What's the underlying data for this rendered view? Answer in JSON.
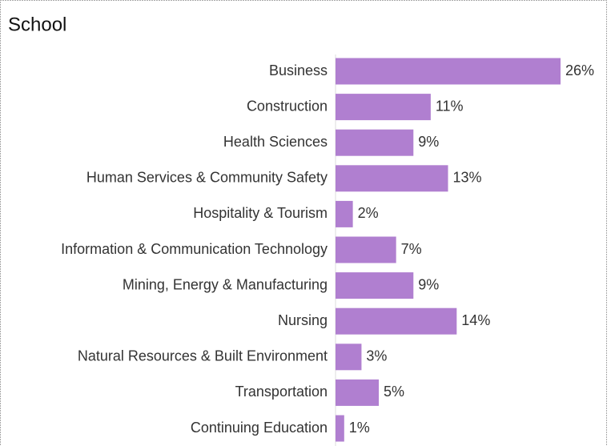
{
  "chart_data": {
    "type": "bar",
    "orientation": "horizontal",
    "title": "School",
    "categories": [
      "Business",
      "Construction",
      "Health Sciences",
      "Human Services & Community Safety",
      "Hospitality & Tourism",
      "Information & Communication Technology",
      "Mining, Energy & Manufacturing",
      "Nursing",
      "Natural Resources & Built Environment",
      "Transportation",
      "Continuing Education"
    ],
    "values": [
      26,
      11,
      9,
      13,
      2,
      7,
      9,
      14,
      3,
      5,
      1
    ],
    "value_labels": [
      "26%",
      "11%",
      "9%",
      "13%",
      "2%",
      "7%",
      "9%",
      "14%",
      "3%",
      "5%",
      "1%"
    ],
    "color": "#b07fd0"
  }
}
